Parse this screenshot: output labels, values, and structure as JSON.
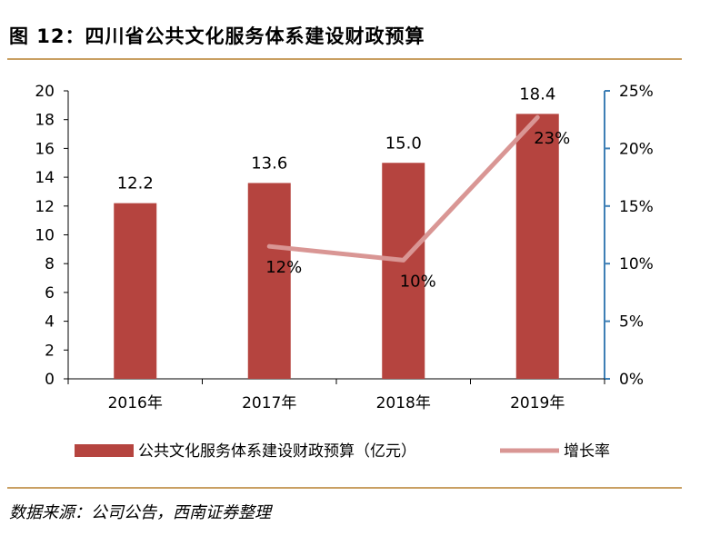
{
  "header": {
    "title": "图 12：四川省公共文化服务体系建设财政预算"
  },
  "footer": {
    "source": "数据来源：公司公告，西南证券整理"
  },
  "colors": {
    "bar": "#b5443f",
    "line": "#d99694",
    "rule": "#c9a063",
    "right_axis": "#3e7fb5"
  },
  "chart_data": {
    "type": "bar",
    "title": "",
    "categories": [
      "2016年",
      "2017年",
      "2018年",
      "2019年"
    ],
    "series": [
      {
        "name": "公共文化服务体系建设财政预算（亿元）",
        "type": "bar",
        "axis": "left",
        "values": [
          12.2,
          13.6,
          15.0,
          18.4
        ],
        "labels": [
          "12.2",
          "13.6",
          "15.0",
          "18.4"
        ]
      },
      {
        "name": "增长率",
        "type": "line",
        "axis": "right",
        "values": [
          null,
          11.5,
          10.3,
          22.7
        ],
        "labels": [
          "",
          "12%",
          "10%",
          "23%"
        ]
      }
    ],
    "y_left": {
      "ylim": [
        0,
        20
      ],
      "ticks": [
        "0",
        "2",
        "4",
        "6",
        "8",
        "10",
        "12",
        "14",
        "16",
        "18",
        "20"
      ]
    },
    "y_right": {
      "ylim": [
        0,
        25
      ],
      "ticks": [
        "0%",
        "5%",
        "10%",
        "15%",
        "20%",
        "25%"
      ]
    },
    "legend": "bottom",
    "grid": false
  }
}
